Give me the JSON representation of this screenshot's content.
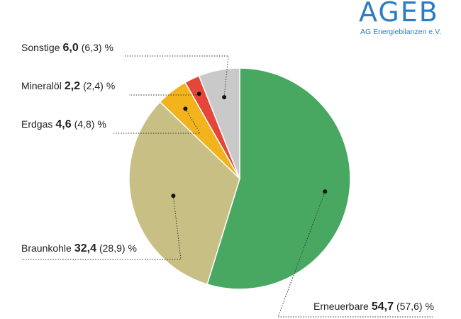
{
  "logo": {
    "text": "AGEB",
    "subtitle": "AG Energiebilanzen e.V."
  },
  "chart_data": {
    "type": "pie",
    "unit": "%",
    "slices": [
      {
        "name": "Erneuerbare",
        "value": "54,7",
        "previous": "(57,6)",
        "share": 54.7,
        "color": "#48a862"
      },
      {
        "name": "Braunkohle",
        "value": "32,4",
        "previous": "(28,9)",
        "share": 32.4,
        "color": "#c8bf84"
      },
      {
        "name": "Erdgas",
        "value": "4,6",
        "previous": "(4,8)",
        "share": 4.6,
        "color": "#f2b31d"
      },
      {
        "name": "Mineralöl",
        "value": "2,2",
        "previous": "(2,4)",
        "share": 2.2,
        "color": "#e4473a"
      },
      {
        "name": "Sonstige",
        "value": "6,0",
        "previous": "(6,3)",
        "share": 6.0,
        "color": "#c9c9c9"
      }
    ]
  }
}
